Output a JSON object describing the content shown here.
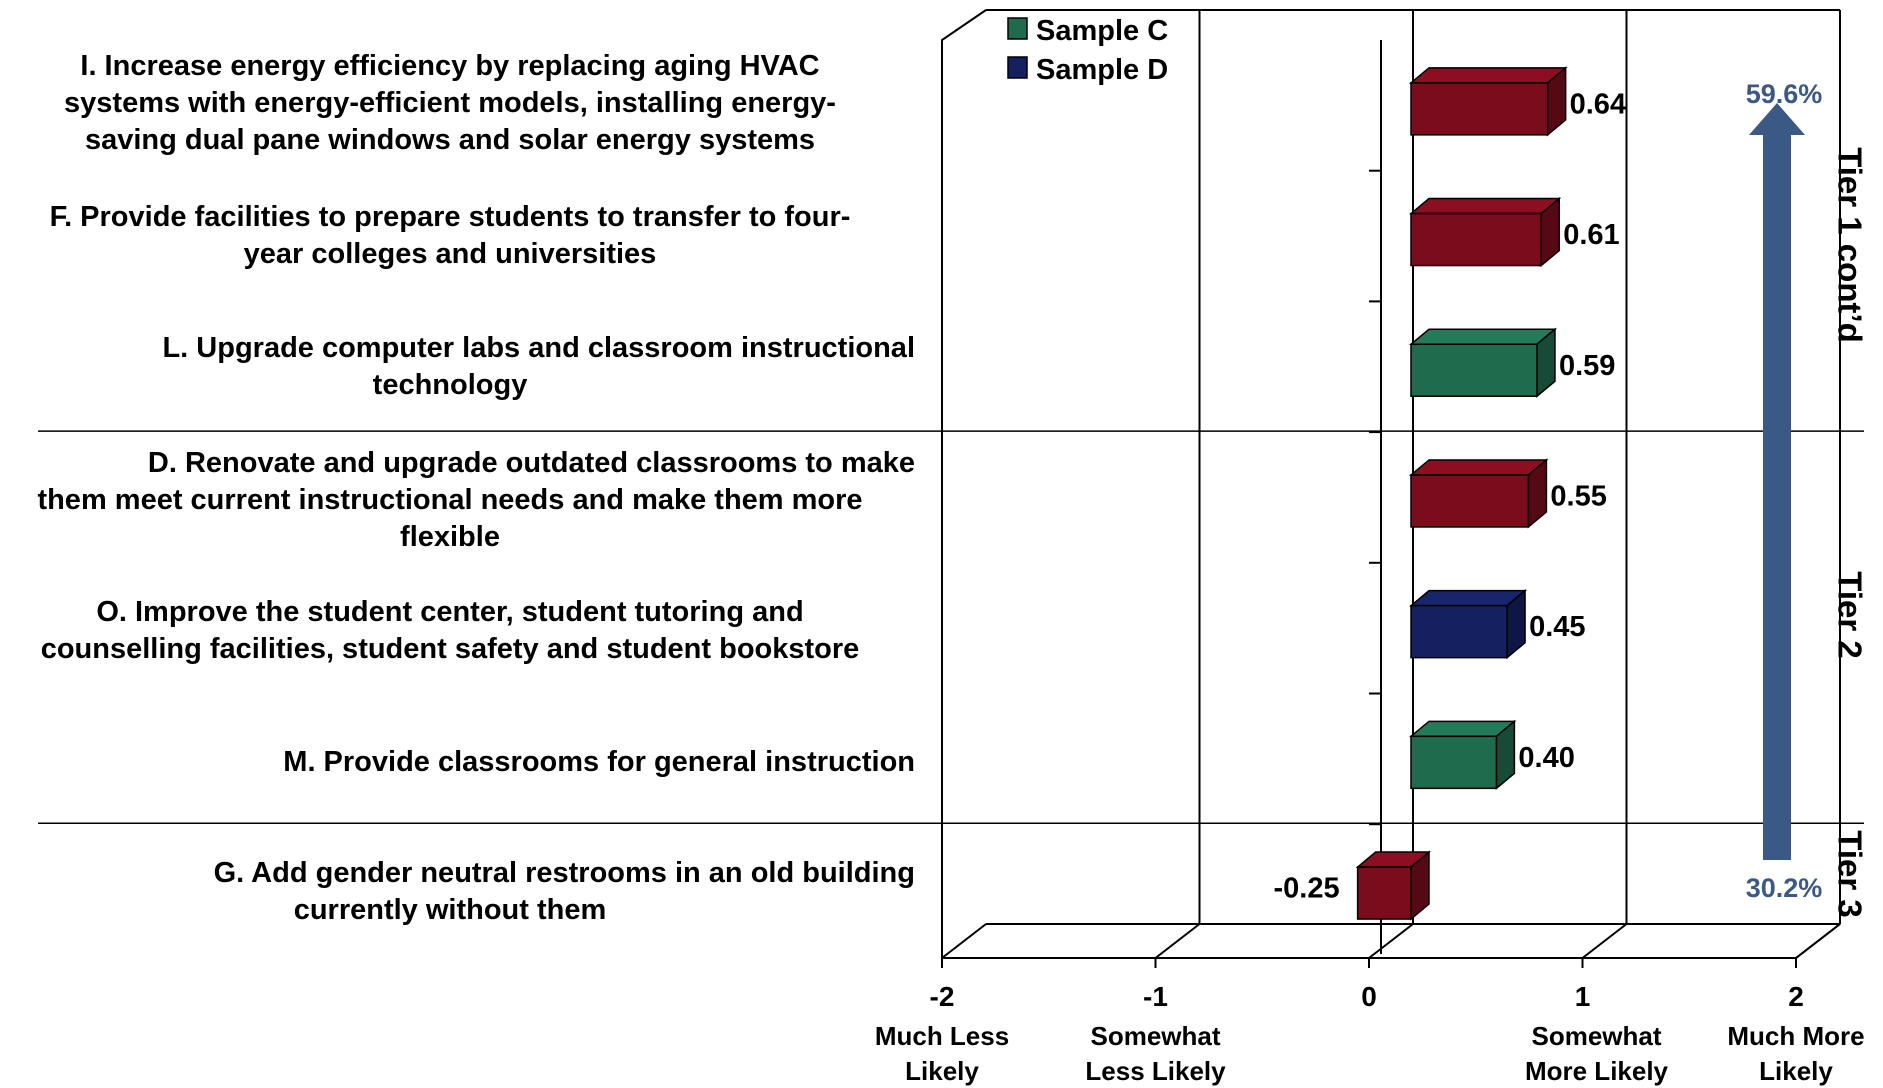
{
  "chart_data": {
    "type": "bar",
    "orientation": "horizontal",
    "categories": [
      "I. Increase energy efficiency by replacing aging HVAC systems with energy-efficient models, installing energy-saving dual pane windows and solar energy systems",
      "F. Provide facilities to prepare students to transfer to four-year colleges and universities",
      "L. Upgrade computer labs and classroom instructional technology",
      "D. Renovate and upgrade outdated classrooms to make them meet current instructional needs and make them more flexible",
      "O. Improve the student center, student tutoring and counselling facilities, student safety and student bookstore",
      "M. Provide classrooms for general instruction",
      "G. Add gender neutral restrooms in an old building currently without them"
    ],
    "category_lines": [
      [
        "I. Increase energy efficiency by replacing aging HVAC",
        "systems with energy-efficient models, installing energy-",
        "saving dual pane windows and solar energy systems"
      ],
      [
        "F. Provide facilities to prepare students to transfer to four-",
        "year colleges and universities"
      ],
      [
        "L. Upgrade computer labs and classroom instructional",
        "technology"
      ],
      [
        "D. Renovate and upgrade outdated classrooms to make",
        "them meet current instructional needs and make them more",
        "flexible"
      ],
      [
        "O. Improve the student center, student tutoring and",
        "counselling facilities, student safety and student bookstore"
      ],
      [
        "M. Provide classrooms for general instruction"
      ],
      [
        "G. Add gender neutral restrooms in an old building",
        "currently without them"
      ]
    ],
    "values": [
      0.64,
      0.61,
      0.59,
      0.55,
      0.45,
      0.4,
      -0.25
    ],
    "value_labels": [
      "0.64",
      "0.61",
      "0.59",
      "0.55",
      "0.45",
      "0.40",
      "-0.25"
    ],
    "bar_colors": [
      "#7b0c1c",
      "#7b0c1c",
      "#1f6b4e",
      "#7b0c1c",
      "#14205f",
      "#1f6b4e",
      "#7b0c1c"
    ],
    "legend": [
      {
        "name": "Sample C",
        "color": "#1f6b4e"
      },
      {
        "name": "Sample D",
        "color": "#14205f"
      }
    ],
    "xlim": [
      -2,
      2
    ],
    "x_ticks": [
      {
        "value": -2,
        "label": "-2",
        "desc": [
          "Much Less",
          "Likely"
        ]
      },
      {
        "value": -1,
        "label": "-1",
        "desc": [
          "Somewhat",
          "Less Likely"
        ]
      },
      {
        "value": 0,
        "label": "0",
        "desc": []
      },
      {
        "value": 1,
        "label": "1",
        "desc": [
          "Somewhat",
          "More Likely"
        ]
      },
      {
        "value": 2,
        "label": "2",
        "desc": [
          "Much More",
          "Likely"
        ]
      }
    ],
    "tiers": [
      {
        "label": "Tier 1 cont’d",
        "from": 0,
        "to": 2
      },
      {
        "label": "Tier 2",
        "from": 3,
        "to": 5
      },
      {
        "label": "Tier 3",
        "from": 6,
        "to": 6
      }
    ],
    "arrow": {
      "top_label": "59.6%",
      "bottom_label": "30.2%",
      "color": "#3a5a85"
    },
    "grid": true,
    "style": "3d"
  }
}
